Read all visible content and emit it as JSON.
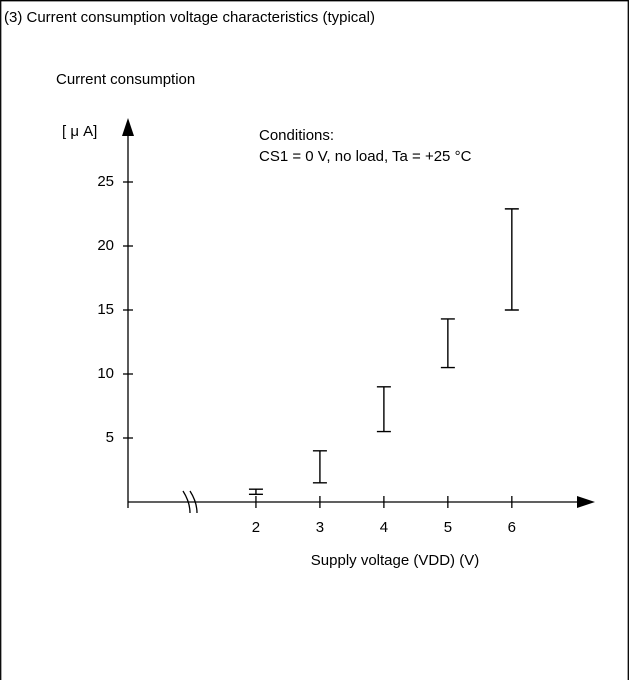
{
  "chart_data": {
    "type": "range_bar",
    "title": "(3) Current consumption voltage characteristics (typical)",
    "ylabel": "Current consumption",
    "yunit": "[ μ A]",
    "annotations": [
      "Conditions:",
      "CS1 = 0 V, no load, Ta = +25 °C"
    ],
    "xlabel": "Supply voltage (VDD) (V)",
    "x": [
      2,
      3,
      4,
      5,
      6
    ],
    "low": [
      0.6,
      1.5,
      5.5,
      10.5,
      15
    ],
    "high": [
      1,
      4,
      9,
      14.3,
      22.9
    ],
    "color": "#000000",
    "xlim": [
      0,
      7.3
    ],
    "xticks": [
      2,
      3,
      4,
      5,
      6
    ],
    "ylim": [
      0,
      30
    ],
    "yticks": [
      5,
      10,
      15,
      20,
      25
    ],
    "axis_break": true
  }
}
